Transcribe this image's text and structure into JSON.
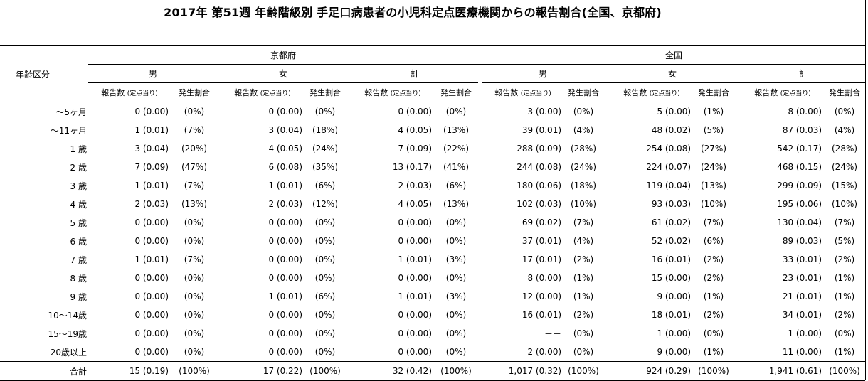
{
  "title": "2017年 第51週 年齢階級別 手足口病患者の小児科定点医療機関からの報告割合(全国、京都府)",
  "header": {
    "age_label": "年齢区分",
    "regions": [
      "京都府",
      "全国"
    ],
    "sexes": [
      "男",
      "女",
      "計"
    ],
    "col_report": "報告数",
    "col_report_sub": "(定点当り)",
    "col_rate": "発生割合"
  },
  "rows": [
    {
      "age": "～5ヶ月",
      "cells": [
        [
          "0 (0.00)",
          "(0%)"
        ],
        [
          "0 (0.00)",
          "(0%)"
        ],
        [
          "0 (0.00)",
          "(0%)"
        ],
        [
          "3 (0.00)",
          "(0%)"
        ],
        [
          "5 (0.00)",
          "(1%)"
        ],
        [
          "8 (0.00)",
          "(0%)"
        ]
      ]
    },
    {
      "age": "～11ヶ月",
      "cells": [
        [
          "1 (0.01)",
          "(7%)"
        ],
        [
          "3 (0.04)",
          "(18%)"
        ],
        [
          "4 (0.05)",
          "(13%)"
        ],
        [
          "39 (0.01)",
          "(4%)"
        ],
        [
          "48 (0.02)",
          "(5%)"
        ],
        [
          "87 (0.03)",
          "(4%)"
        ]
      ]
    },
    {
      "age": "1 歳",
      "cells": [
        [
          "3 (0.04)",
          "(20%)"
        ],
        [
          "4 (0.05)",
          "(24%)"
        ],
        [
          "7 (0.09)",
          "(22%)"
        ],
        [
          "288 (0.09)",
          "(28%)"
        ],
        [
          "254 (0.08)",
          "(27%)"
        ],
        [
          "542 (0.17)",
          "(28%)"
        ]
      ]
    },
    {
      "age": "2 歳",
      "cells": [
        [
          "7 (0.09)",
          "(47%)"
        ],
        [
          "6 (0.08)",
          "(35%)"
        ],
        [
          "13 (0.17)",
          "(41%)"
        ],
        [
          "244 (0.08)",
          "(24%)"
        ],
        [
          "224 (0.07)",
          "(24%)"
        ],
        [
          "468 (0.15)",
          "(24%)"
        ]
      ]
    },
    {
      "age": "3 歳",
      "cells": [
        [
          "1 (0.01)",
          "(7%)"
        ],
        [
          "1 (0.01)",
          "(6%)"
        ],
        [
          "2 (0.03)",
          "(6%)"
        ],
        [
          "180 (0.06)",
          "(18%)"
        ],
        [
          "119 (0.04)",
          "(13%)"
        ],
        [
          "299 (0.09)",
          "(15%)"
        ]
      ]
    },
    {
      "age": "4 歳",
      "cells": [
        [
          "2 (0.03)",
          "(13%)"
        ],
        [
          "2 (0.03)",
          "(12%)"
        ],
        [
          "4 (0.05)",
          "(13%)"
        ],
        [
          "102 (0.03)",
          "(10%)"
        ],
        [
          "93 (0.03)",
          "(10%)"
        ],
        [
          "195 (0.06)",
          "(10%)"
        ]
      ]
    },
    {
      "age": "5 歳",
      "cells": [
        [
          "0 (0.00)",
          "(0%)"
        ],
        [
          "0 (0.00)",
          "(0%)"
        ],
        [
          "0 (0.00)",
          "(0%)"
        ],
        [
          "69 (0.02)",
          "(7%)"
        ],
        [
          "61 (0.02)",
          "(7%)"
        ],
        [
          "130 (0.04)",
          "(7%)"
        ]
      ]
    },
    {
      "age": "6 歳",
      "cells": [
        [
          "0 (0.00)",
          "(0%)"
        ],
        [
          "0 (0.00)",
          "(0%)"
        ],
        [
          "0 (0.00)",
          "(0%)"
        ],
        [
          "37 (0.01)",
          "(4%)"
        ],
        [
          "52 (0.02)",
          "(6%)"
        ],
        [
          "89 (0.03)",
          "(5%)"
        ]
      ]
    },
    {
      "age": "7 歳",
      "cells": [
        [
          "1 (0.01)",
          "(7%)"
        ],
        [
          "0 (0.00)",
          "(0%)"
        ],
        [
          "1 (0.01)",
          "(3%)"
        ],
        [
          "17 (0.01)",
          "(2%)"
        ],
        [
          "16 (0.01)",
          "(2%)"
        ],
        [
          "33 (0.01)",
          "(2%)"
        ]
      ]
    },
    {
      "age": "8 歳",
      "cells": [
        [
          "0 (0.00)",
          "(0%)"
        ],
        [
          "0 (0.00)",
          "(0%)"
        ],
        [
          "0 (0.00)",
          "(0%)"
        ],
        [
          "8 (0.00)",
          "(1%)"
        ],
        [
          "15 (0.00)",
          "(2%)"
        ],
        [
          "23 (0.01)",
          "(1%)"
        ]
      ]
    },
    {
      "age": "9 歳",
      "cells": [
        [
          "0 (0.00)",
          "(0%)"
        ],
        [
          "1 (0.01)",
          "(6%)"
        ],
        [
          "1 (0.01)",
          "(3%)"
        ],
        [
          "12 (0.00)",
          "(1%)"
        ],
        [
          "9 (0.00)",
          "(1%)"
        ],
        [
          "21 (0.01)",
          "(1%)"
        ]
      ]
    },
    {
      "age": "10～14歳",
      "cells": [
        [
          "0 (0.00)",
          "(0%)"
        ],
        [
          "0 (0.00)",
          "(0%)"
        ],
        [
          "0 (0.00)",
          "(0%)"
        ],
        [
          "16 (0.01)",
          "(2%)"
        ],
        [
          "18 (0.01)",
          "(2%)"
        ],
        [
          "34 (0.01)",
          "(2%)"
        ]
      ]
    },
    {
      "age": "15～19歳",
      "cells": [
        [
          "0 (0.00)",
          "(0%)"
        ],
        [
          "0 (0.00)",
          "(0%)"
        ],
        [
          "0 (0.00)",
          "(0%)"
        ],
        [
          "－－",
          "(0%)"
        ],
        [
          "1 (0.00)",
          "(0%)"
        ],
        [
          "1 (0.00)",
          "(0%)"
        ]
      ]
    },
    {
      "age": "20歳以上",
      "cells": [
        [
          "0 (0.00)",
          "(0%)"
        ],
        [
          "0 (0.00)",
          "(0%)"
        ],
        [
          "0 (0.00)",
          "(0%)"
        ],
        [
          "2 (0.00)",
          "(0%)"
        ],
        [
          "9 (0.00)",
          "(1%)"
        ],
        [
          "11 (0.00)",
          "(1%)"
        ]
      ]
    },
    {
      "age": "合計",
      "cells": [
        [
          "15 (0.19)",
          "(100%)"
        ],
        [
          "17 (0.22)",
          "(100%)"
        ],
        [
          "32 (0.42)",
          "(100%)"
        ],
        [
          "1,017 (0.32)",
          "(100%)"
        ],
        [
          "924 (0.29)",
          "(100%)"
        ],
        [
          "1,941 (0.61)",
          "(100%)"
        ]
      ]
    }
  ]
}
